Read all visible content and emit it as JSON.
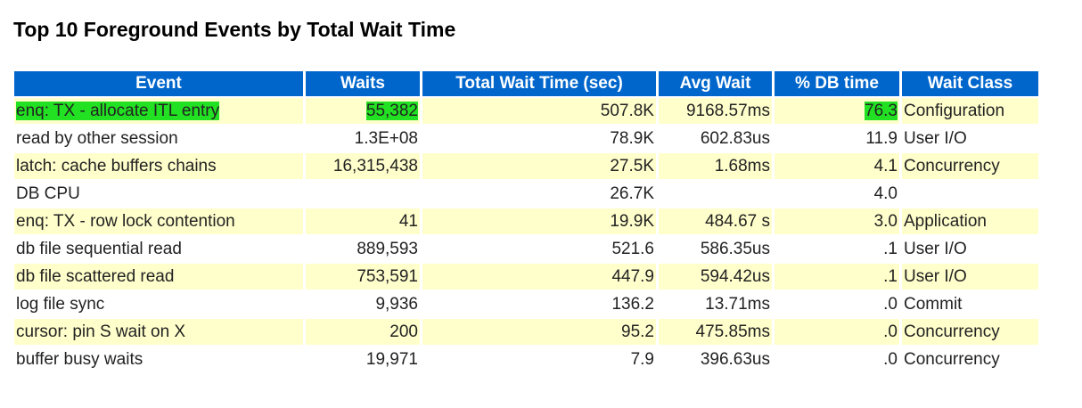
{
  "header": {
    "title": "Top 10 Foreground Events by Total Wait Time"
  },
  "table": {
    "columns": [
      "Event",
      "Waits",
      "Total Wait Time (sec)",
      "Avg Wait",
      "% DB time",
      "Wait Class"
    ],
    "rows": [
      [
        "enq: TX - allocate ITL entry",
        "55,382",
        "507.8K",
        "9168.57ms",
        "76.3",
        "Configuration"
      ],
      [
        "read by other session",
        "1.3E+08",
        "78.9K",
        "602.83us",
        "11.9",
        "User I/O"
      ],
      [
        "latch: cache buffers chains",
        "16,315,438",
        "27.5K",
        "1.68ms",
        "4.1",
        "Concurrency"
      ],
      [
        "DB CPU",
        null,
        "26.7K",
        null,
        "4.0",
        null
      ],
      [
        "enq: TX - row lock contention",
        "41",
        "19.9K",
        "484.67 s",
        "3.0",
        "Application"
      ],
      [
        "db file sequential read",
        "889,593",
        "521.6",
        "586.35us",
        ".1",
        "User I/O"
      ],
      [
        "db file scattered read",
        "753,591",
        "447.9",
        "594.42us",
        ".1",
        "User I/O"
      ],
      [
        "log file sync",
        "9,936",
        "136.2",
        "13.71ms",
        ".0",
        "Commit"
      ],
      [
        "cursor: pin S wait on X",
        "200",
        "95.2",
        "475.85ms",
        ".0",
        "Concurrency"
      ],
      [
        "buffer busy waits",
        "19,971",
        "7.9",
        "396.63us",
        ".0",
        "Concurrency"
      ]
    ]
  }
}
